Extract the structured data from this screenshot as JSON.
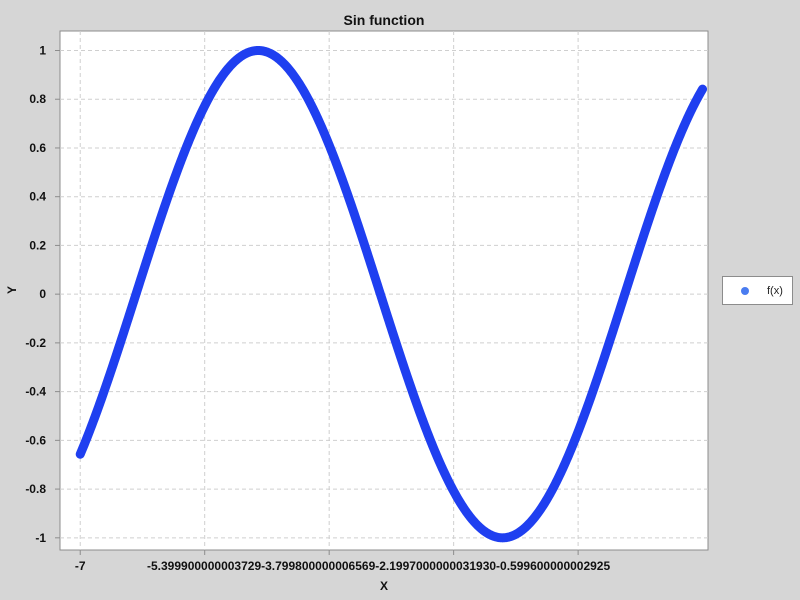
{
  "chart_data": {
    "type": "scatter",
    "title": "Sin function",
    "xlabel": "X",
    "ylabel": "Y",
    "xlim": [
      -7.26,
      1.07
    ],
    "ylim": [
      -1.05,
      1.08
    ],
    "grid": true,
    "legend_position": "right",
    "x_ticks": [
      -7,
      -5.399900000003729,
      -3.799800000006569,
      -2.199700000003193,
      -0.599600000002925
    ],
    "x_tick_labels": [
      "-7",
      "-5.399900000003729",
      "-3.799800000006569",
      "-2.1997000000031930",
      "-0.599600000002925"
    ],
    "y_ticks": [
      1,
      0.8,
      0.6,
      0.4,
      0.2,
      0,
      -0.2,
      -0.4,
      -0.6,
      -0.8,
      -1
    ],
    "y_tick_labels": [
      "1",
      "0.8",
      "0.6",
      "0.4",
      "0.2",
      "0",
      "-0.2",
      "-0.4",
      "-0.6",
      "-0.8",
      "-1"
    ],
    "series": [
      {
        "name": "f(x)",
        "color": "#1f3ff0",
        "function": "sin",
        "x_start": -7,
        "x_end": 1,
        "x_step": 0.0001
      }
    ]
  },
  "legend": {
    "items": [
      {
        "label": "f(x)",
        "color": "#4a7cf0"
      }
    ]
  }
}
